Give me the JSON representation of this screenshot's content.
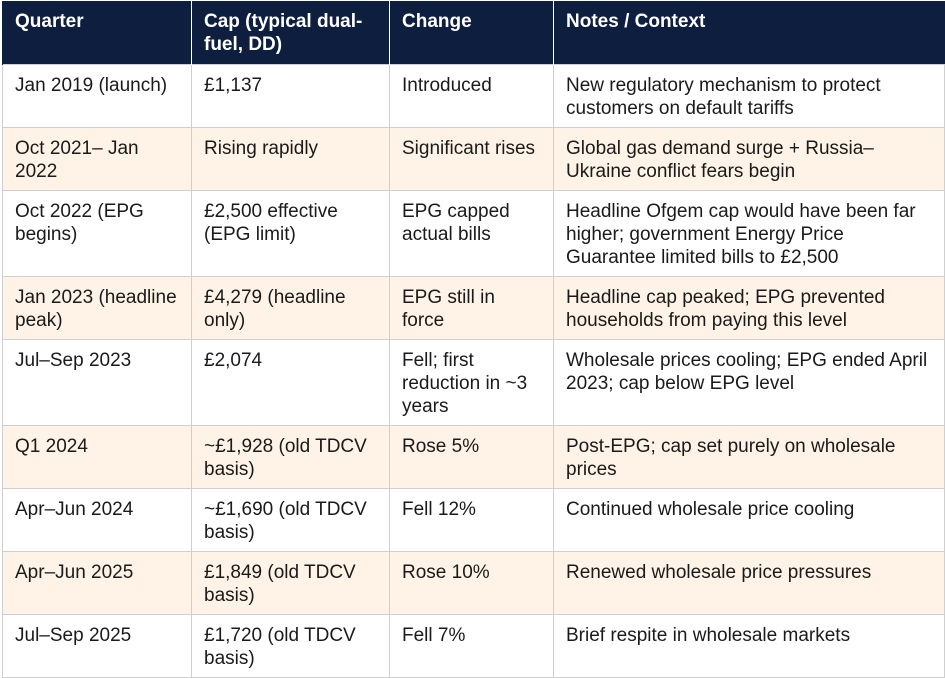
{
  "table": {
    "headers": [
      "Quarter",
      "Cap (typical dual-fuel, DD)",
      "Change",
      "Notes / Context"
    ],
    "rows": [
      [
        "Jan 2019 (launch)",
        "£1,137",
        "Introduced",
        "New regulatory mechanism to protect customers on default tariffs"
      ],
      [
        "Oct 2021– Jan 2022",
        "Rising rapidly",
        "Significant rises",
        "Global gas demand surge + Russia–Ukraine conflict fears begin"
      ],
      [
        "Oct 2022 (EPG begins)",
        "£2,500 effective (EPG limit)",
        "EPG capped actual bills",
        "Headline Ofgem cap would have been far higher; government Energy Price Guarantee limited bills to £2,500"
      ],
      [
        "Jan 2023 (headline peak)",
        "£4,279 (headline only)",
        "EPG still in force",
        "Headline cap peaked; EPG prevented households from paying this level"
      ],
      [
        "Jul–Sep 2023",
        "£2,074",
        "Fell; first reduction in ~3 years",
        "Wholesale prices cooling; EPG ended April 2023; cap below EPG level"
      ],
      [
        "Q1 2024",
        "~£1,928 (old TDCV basis)",
        "Rose 5%",
        "Post-EPG; cap set purely on wholesale prices"
      ],
      [
        "Apr–Jun 2024",
        "~£1,690 (old TDCV basis)",
        "Fell 12%",
        "Continued wholesale price cooling"
      ],
      [
        "Apr–Jun 2025",
        "£1,849 (old TDCV basis)",
        "Rose 10%",
        "Renewed wholesale price pressures"
      ],
      [
        "Jul–Sep 2025",
        "£1,720 (old TDCV basis)",
        "Fell 7%",
        "Brief respite in wholesale markets"
      ]
    ]
  }
}
